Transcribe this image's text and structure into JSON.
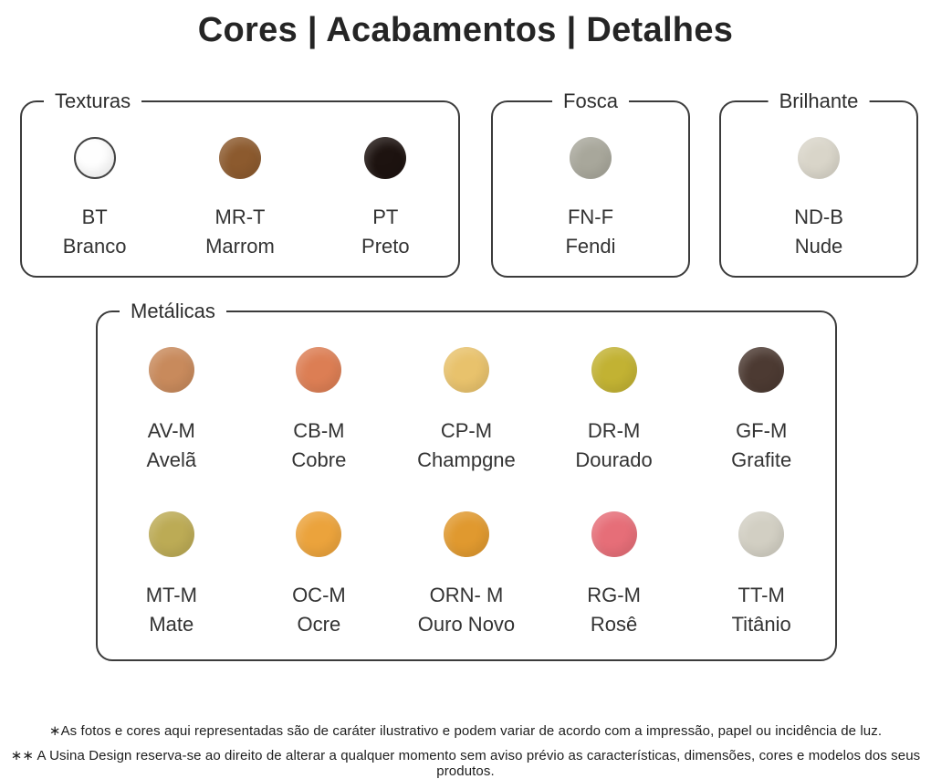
{
  "title": "Cores | Acabamentos | Detalhes",
  "panels": {
    "texturas": {
      "label": "Texturas",
      "swatches": [
        {
          "code": "BT",
          "name": "Branco",
          "color": "#fefefe"
        },
        {
          "code": "MR-T",
          "name": "Marrom",
          "color": "#8c5a2e"
        },
        {
          "code": "PT",
          "name": "Preto",
          "color": "#1d1310"
        }
      ]
    },
    "fosca": {
      "label": "Fosca",
      "swatches": [
        {
          "code": "FN-F",
          "name": "Fendi",
          "color": "#a8a79b"
        }
      ]
    },
    "brilhante": {
      "label": "Brilhante",
      "swatches": [
        {
          "code": "ND-B",
          "name": "Nude",
          "color": "#d9d5c9"
        }
      ]
    },
    "metalicas": {
      "label": "Metálicas",
      "rows": [
        [
          {
            "code": "AV-M",
            "name": "Avelã",
            "color": "#c88a5c"
          },
          {
            "code": "CB-M",
            "name": "Cobre",
            "color": "#dc7e54"
          },
          {
            "code": "CP-M",
            "name": "Champgne",
            "color": "#e8c26c"
          },
          {
            "code": "DR-M",
            "name": "Dourado",
            "color": "#c2b233"
          },
          {
            "code": "GF-M",
            "name": "Grafite",
            "color": "#4c3a32"
          }
        ],
        [
          {
            "code": "MT-M",
            "name": "Mate",
            "color": "#bcab55"
          },
          {
            "code": "OC-M",
            "name": "Ocre",
            "color": "#eba33c"
          },
          {
            "code": "ORN- M",
            "name": "Ouro Novo",
            "color": "#e0992f"
          },
          {
            "code": "RG-M",
            "name": "Rosê",
            "color": "#e66e78"
          },
          {
            "code": "TT-M",
            "name": "Titânio",
            "color": "#d2cfc3"
          }
        ]
      ]
    }
  },
  "footnotes": [
    "∗As fotos e cores aqui representadas são de caráter ilustrativo e podem variar de acordo com a impressão, papel ou incidência de luz.",
    "∗∗ A Usina Design reserva-se ao direito de alterar a qualquer momento sem aviso prévio as características, dimensões, cores e modelos dos seus produtos."
  ],
  "colors": {
    "panel_border": "#3b3b3b",
    "text": "#2e2e2e"
  }
}
